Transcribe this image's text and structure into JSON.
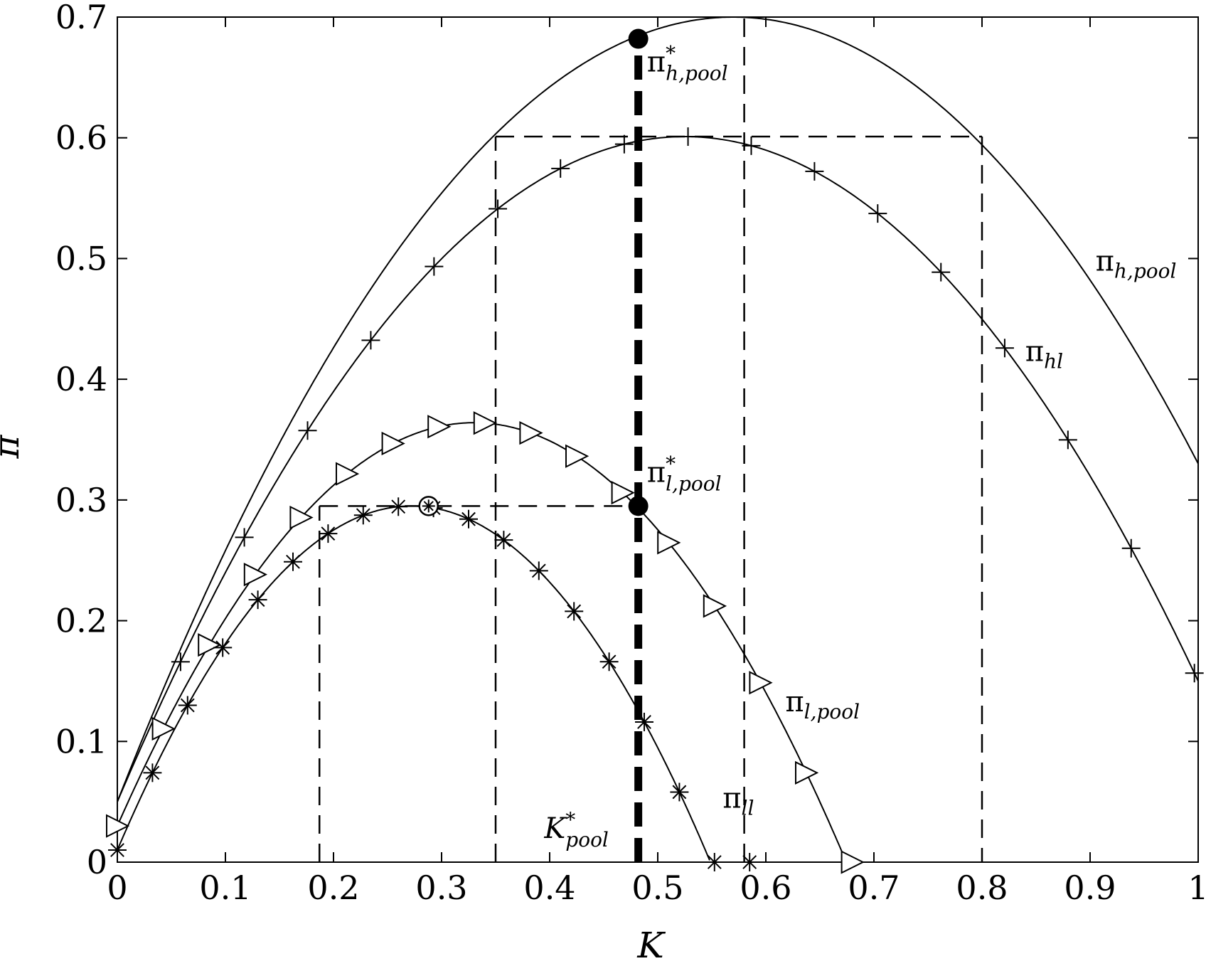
{
  "chart_data": {
    "type": "line",
    "title": "",
    "xlabel": "K",
    "ylabel": "π",
    "xlim": [
      0,
      1
    ],
    "ylim": [
      0,
      0.7
    ],
    "x_ticks": [
      0,
      0.1,
      0.2,
      0.3,
      0.4,
      0.5,
      0.6,
      0.7,
      0.8,
      0.9,
      1
    ],
    "x_tick_labels": [
      "0",
      "0.1",
      "0.2",
      "0.3",
      "0.4",
      "0.5",
      "0.6",
      "0.7",
      "0.8",
      "0.9",
      "1"
    ],
    "y_ticks": [
      0,
      0.1,
      0.2,
      0.3,
      0.4,
      0.5,
      0.6,
      0.7
    ],
    "y_tick_labels": [
      "0",
      "0.1",
      "0.2",
      "0.3",
      "0.4",
      "0.5",
      "0.6",
      "0.7"
    ],
    "grid": false,
    "series": [
      {
        "name": "π_h,pool",
        "marker": "none",
        "curve": {
          "peak_x": 0.57,
          "peak_y": 0.7,
          "value_at_0": 0.05
        },
        "label": {
          "text": "π",
          "sub": "h,pool",
          "anchor_x": 0.905,
          "anchor_y": 0.49
        }
      },
      {
        "name": "π_hl",
        "marker": "plus",
        "curve": {
          "peak_x": 0.525,
          "peak_y": 0.601,
          "value_at_0": 0.05
        },
        "marker_x": [
          0.0585,
          0.1175,
          0.176,
          0.2345,
          0.293,
          0.352,
          0.41,
          0.469,
          0.528,
          0.5865,
          0.645,
          0.7035,
          0.762,
          0.821,
          0.8795,
          0.938,
          0.9965
        ],
        "label": {
          "text": "π",
          "sub": "hl",
          "anchor_x": 0.84,
          "anchor_y": 0.415
        }
      },
      {
        "name": "π_l,pool",
        "marker": "triangle-right",
        "curve": {
          "peak_x": 0.33,
          "peak_y": 0.364,
          "value_at_0": 0.03
        },
        "marker_x": [
          0.0,
          0.0425,
          0.085,
          0.1275,
          0.17,
          0.2125,
          0.255,
          0.2975,
          0.34,
          0.3825,
          0.425,
          0.4675,
          0.51,
          0.5525,
          0.595,
          0.6375,
          0.68
        ],
        "label": {
          "text": "π",
          "sub": "l,pool",
          "anchor_x": 0.618,
          "anchor_y": 0.125
        }
      },
      {
        "name": "π_ll",
        "marker": "asterisk",
        "curve": {
          "peak_x": 0.272,
          "peak_y": 0.295,
          "value_at_0": 0.01
        },
        "marker_x": [
          0.0,
          0.0325,
          0.065,
          0.0975,
          0.13,
          0.1625,
          0.195,
          0.2275,
          0.26,
          0.2925,
          0.325,
          0.3575,
          0.39,
          0.4225,
          0.455,
          0.4875,
          0.52,
          0.5525,
          0.585
        ],
        "label": {
          "text": "π",
          "sub": "ll",
          "anchor_x": 0.56,
          "anchor_y": 0.045
        }
      }
    ],
    "reference_lines": [
      {
        "kind": "dashed",
        "points": [
          [
            0.35,
            0
          ],
          [
            0.35,
            0.601
          ]
        ]
      },
      {
        "kind": "dashed",
        "points": [
          [
            0.35,
            0.601
          ],
          [
            0.8,
            0.601
          ]
        ]
      },
      {
        "kind": "dashed",
        "points": [
          [
            0.8,
            0.601
          ],
          [
            0.8,
            0
          ]
        ]
      },
      {
        "kind": "dashed",
        "points": [
          [
            0.58,
            0
          ],
          [
            0.58,
            0.7
          ]
        ]
      },
      {
        "kind": "dashed",
        "points": [
          [
            0.187,
            0
          ],
          [
            0.187,
            0.295
          ]
        ]
      },
      {
        "kind": "dashed",
        "points": [
          [
            0.187,
            0.295
          ],
          [
            0.482,
            0.295
          ]
        ]
      },
      {
        "kind": "thick-dashed",
        "points": [
          [
            0.482,
            0
          ],
          [
            0.482,
            0.682
          ]
        ]
      }
    ],
    "points": [
      {
        "name": "π*_h,pool",
        "x": 0.482,
        "y": 0.682,
        "style": "filled-circle",
        "label": {
          "text": "π",
          "sup": "*",
          "sub": "h,pool",
          "anchor_x": 0.49,
          "anchor_y": 0.655
        }
      },
      {
        "name": "π*_l,pool",
        "x": 0.482,
        "y": 0.295,
        "style": "filled-circle",
        "label": {
          "text": "π",
          "sup": "*",
          "sub": "l,pool",
          "anchor_x": 0.49,
          "anchor_y": 0.315
        }
      },
      {
        "name": "π_ll max",
        "x": 0.288,
        "y": 0.295,
        "style": "circled-asterisk"
      }
    ],
    "annotations": [
      {
        "text": "K",
        "sup": "*",
        "sub": "pool",
        "anchor_x": 0.395,
        "anchor_y": 0.02
      }
    ]
  }
}
